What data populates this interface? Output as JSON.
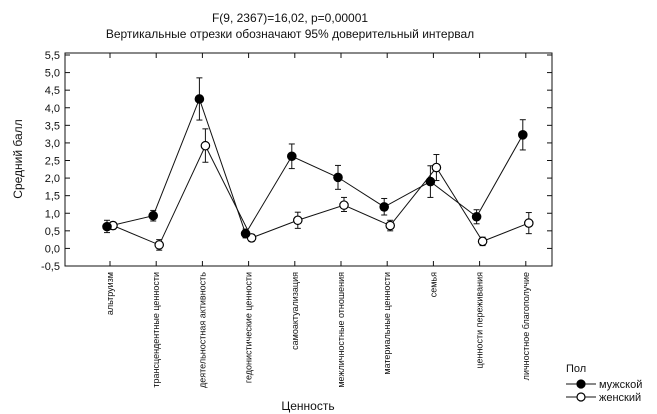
{
  "chart_data": {
    "type": "line",
    "title": "F(9, 2367)=16,02, p=0,00001",
    "subtitle": "Вертикальные отрезки обозначают 95% доверительный интервал",
    "xlabel": "Ценность",
    "ylabel": "Средний балл",
    "ylim": [
      -0.5,
      5.5
    ],
    "yticks": [
      "-0,5",
      "0,0",
      "0,5",
      "1,0",
      "1,5",
      "2,0",
      "2,5",
      "3,0",
      "3,5",
      "4,0",
      "4,5",
      "5,0",
      "5,5"
    ],
    "grid": false,
    "legend_title": "Пол",
    "legend_position": "bottom-right",
    "categories": [
      "альтруизм",
      "трансцендентные ценности",
      "деятельностная активность",
      "гедонистические ценности",
      "самоактуализация",
      "межличностные отношения",
      "материальные ценности",
      "семья",
      "ценности переживания",
      "личностное благополучие"
    ],
    "series": [
      {
        "name": "мужской",
        "marker": "filled-circle",
        "values": [
          0.62,
          0.93,
          4.25,
          0.42,
          2.62,
          2.02,
          1.18,
          1.9,
          0.9,
          3.23
        ],
        "ci_low": [
          0.45,
          0.78,
          3.65,
          0.3,
          2.27,
          1.68,
          0.95,
          1.45,
          0.7,
          2.8
        ],
        "ci_high": [
          0.8,
          1.08,
          4.85,
          0.55,
          2.97,
          2.36,
          1.42,
          2.35,
          1.1,
          3.66
        ]
      },
      {
        "name": "женский",
        "marker": "open-circle",
        "values": [
          0.65,
          0.1,
          2.92,
          0.3,
          0.8,
          1.23,
          0.65,
          2.3,
          0.2,
          0.72
        ],
        "ci_low": [
          0.55,
          -0.05,
          2.45,
          0.2,
          0.57,
          1.05,
          0.5,
          1.93,
          0.08,
          0.42
        ],
        "ci_high": [
          0.75,
          0.25,
          3.4,
          0.4,
          1.03,
          1.45,
          0.8,
          2.67,
          0.32,
          1.02
        ]
      }
    ]
  }
}
